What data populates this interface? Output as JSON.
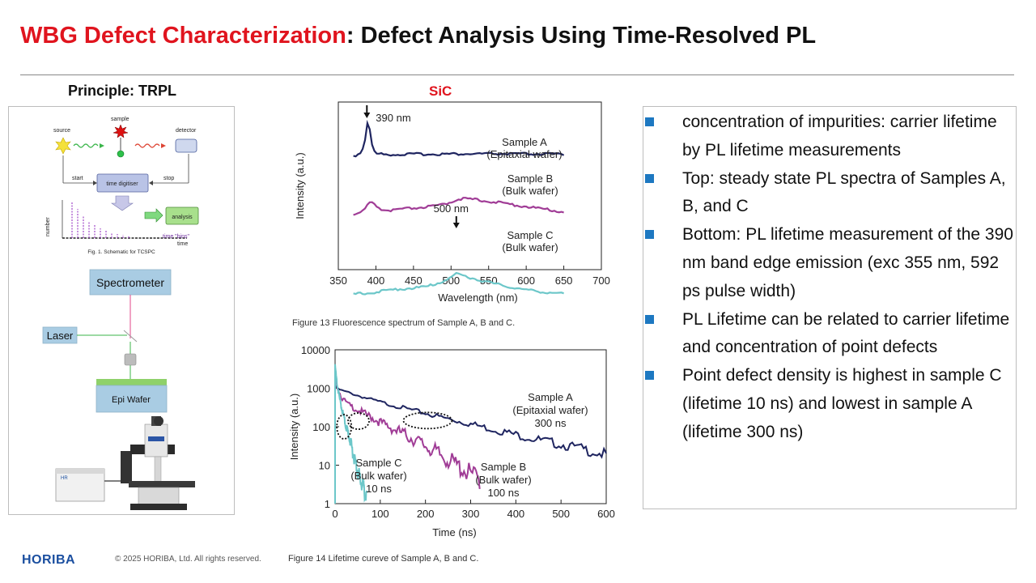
{
  "header": {
    "title_accent": "WBG Defect Characterization",
    "title_rest": ": Defect Analysis Using Time-Resolved PL"
  },
  "left_panel": {
    "heading": "Principle: TRPL",
    "schematic": {
      "source": "source",
      "sample": "sample",
      "detector": "detector",
      "start": "start",
      "stop": "stop",
      "time_digitiser": "time digitiser",
      "number": "number",
      "analysis": "analysis",
      "time_bins": "time \"bins\"",
      "time": "time",
      "caption": "Fig. 1. Schematic for TCSPC"
    },
    "setup": {
      "spectrometer": "Spectrometer",
      "laser": "Laser",
      "epi_wafer": "Epi Wafer",
      "instrument_label": "HR"
    }
  },
  "center": {
    "heading": "SiC"
  },
  "bullets": [
    "concentration of impurities: carrier lifetime by PL lifetime measurements",
    "Top: steady state PL spectra of Samples A, B, and C",
    "Bottom: PL lifetime measurement of the 390 nm band edge emission (exc 355 nm, 592 ps pulse width)",
    "PL Lifetime can be related to carrier lifetime and concentration of point defects",
    "Point defect density is highest in sample C (lifetime 10 ns) and lowest in sample A (lifetime 300 ns)"
  ],
  "colors": {
    "accent_red": "#e0141e",
    "bullet_blue": "#1d78c1",
    "sample_a": "#1f2560",
    "sample_b": "#a03c96",
    "sample_c": "#6cc7c9",
    "logo_blue": "#1b4fa0"
  },
  "chart_data": [
    {
      "type": "line",
      "caption": "Figure 13   Fluorescence spectrum of Sample A, B and C.",
      "xlabel": "Wavelength  (nm)",
      "ylabel": "Intensity  (a.u.)",
      "xlim": [
        350,
        700
      ],
      "xticks": [
        350,
        400,
        450,
        500,
        550,
        600,
        650,
        700
      ],
      "x_tick_labels": [
        "350",
        "400",
        "450",
        "500",
        "550",
        "600",
        "650",
        "700"
      ],
      "grid": false,
      "annotations": [
        "390 nm",
        "500 nm"
      ],
      "series": [
        {
          "name": "Sample A",
          "label_lines": [
            "Sample A",
            "(Epitaxial wafer)"
          ],
          "color": "#1f2560",
          "x": [
            370,
            375,
            380,
            384,
            387,
            389,
            390,
            391,
            393,
            396,
            400,
            410,
            430,
            450,
            500,
            550,
            600,
            650
          ],
          "y": [
            1.6,
            1.7,
            2.0,
            2.7,
            4.1,
            5.6,
            5.85,
            5.3,
            3.5,
            2.3,
            1.85,
            1.75,
            1.75,
            1.78,
            1.8,
            1.82,
            1.8,
            1.78
          ]
        },
        {
          "name": "Sample B",
          "label_lines": [
            "Sample B",
            "(Bulk wafer)"
          ],
          "color": "#a03c96",
          "x": [
            370,
            380,
            385,
            390,
            394,
            400,
            410,
            420,
            440,
            460,
            480,
            500,
            510,
            530,
            550,
            575,
            600,
            625,
            650
          ],
          "y": [
            0.0,
            0.2,
            0.6,
            1.2,
            1.35,
            0.95,
            0.5,
            0.45,
            0.65,
            0.8,
            0.95,
            1.4,
            1.8,
            1.7,
            1.5,
            1.2,
            0.9,
            0.6,
            0.3
          ]
        },
        {
          "name": "Sample C",
          "label_lines": [
            "Sample C",
            "(Bulk wafer)"
          ],
          "color": "#6cc7c9",
          "x": [
            370,
            400,
            430,
            450,
            470,
            490,
            500,
            505,
            510,
            520,
            540,
            560,
            580,
            600,
            625,
            650
          ],
          "y": [
            -3.5,
            -3.25,
            -2.9,
            -2.8,
            -2.6,
            -2.0,
            -1.6,
            -1.25,
            -1.2,
            -1.5,
            -1.95,
            -2.35,
            -2.7,
            -3.0,
            -3.25,
            -3.45
          ]
        }
      ]
    },
    {
      "type": "line",
      "caption": "Figure 14   Lifetime cureve of Sample A, B and C.",
      "xlabel": "Time  (ns)",
      "ylabel": "Intensity  (a.u.)",
      "xlim": [
        0,
        600
      ],
      "ylim": [
        1,
        10000
      ],
      "yscale": "log",
      "xticks": [
        0,
        100,
        200,
        300,
        400,
        500,
        600
      ],
      "yticks": [
        1,
        10,
        100,
        1000,
        10000
      ],
      "x_tick_labels": [
        "0",
        "100",
        "200",
        "300",
        "400",
        "500",
        "600"
      ],
      "y_tick_labels": [
        "1",
        "10",
        "100",
        "1000",
        "10000"
      ],
      "grid": false,
      "series": [
        {
          "name": "Sample A",
          "label_lines": [
            "Sample A",
            "(Epitaxial wafer)",
            "300 ns"
          ],
          "color": "#1f2560",
          "x": [
            0,
            5,
            15,
            30,
            60,
            100,
            150,
            200,
            250,
            300,
            350,
            400,
            450,
            500,
            550,
            600
          ],
          "y": [
            1200,
            1000,
            900,
            800,
            620,
            460,
            330,
            240,
            175,
            130,
            95,
            70,
            52,
            40,
            30,
            22
          ]
        },
        {
          "name": "Sample B",
          "label_lines": [
            "Sample B",
            "(Bulk wafer)",
            "100 ns"
          ],
          "color": "#a03c96",
          "x": [
            0,
            5,
            15,
            30,
            50,
            80,
            110,
            150,
            200,
            250,
            300,
            320
          ],
          "y": [
            3000,
            1100,
            600,
            400,
            300,
            200,
            130,
            80,
            40,
            18,
            8,
            6
          ]
        },
        {
          "name": "Sample C",
          "label_lines": [
            "Sample C",
            "(Bulk wafer)",
            "10 ns"
          ],
          "color": "#6cc7c9",
          "x": [
            0,
            4,
            10,
            20,
            30,
            40,
            50,
            60,
            70
          ],
          "y": [
            4000,
            1500,
            600,
            180,
            70,
            25,
            9,
            4,
            2
          ]
        }
      ]
    }
  ],
  "footer": {
    "logo": "HORIBA",
    "copyright": "© 2025 HORIBA, Ltd. All rights reserved."
  }
}
